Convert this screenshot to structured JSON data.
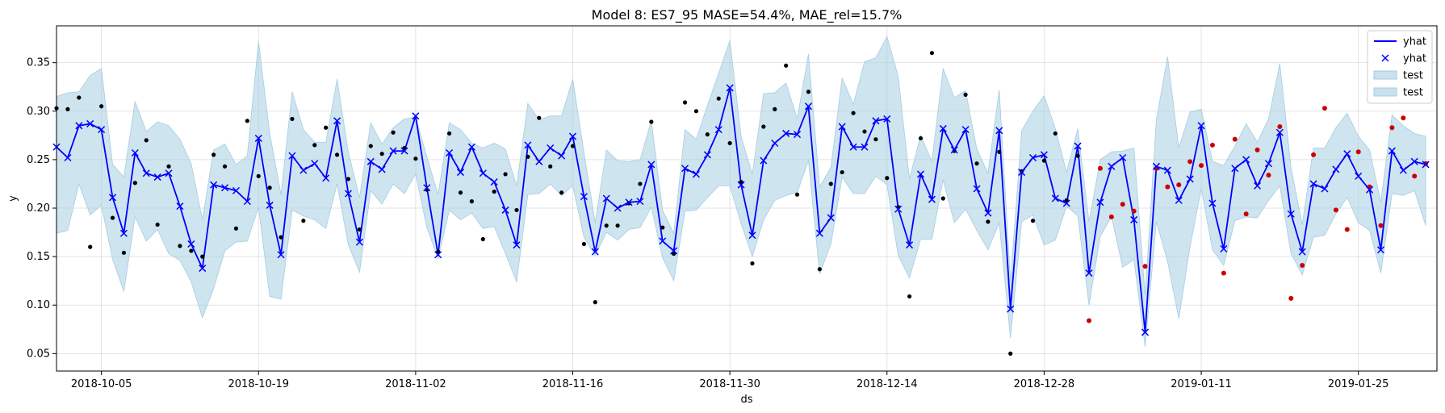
{
  "chart_data": {
    "type": "line",
    "title": "Model 8: ES7_95 MASE=54.4%, MAE_rel=15.7%",
    "xlabel": "ds",
    "ylabel": "y",
    "x_start": "2018-10-01",
    "x_range": [
      "2018-10-01",
      "2019-02-01"
    ],
    "ylim": [
      0.032,
      0.388
    ],
    "x_ticks": [
      "2018-10-05",
      "2018-10-19",
      "2018-11-02",
      "2018-11-16",
      "2018-11-30",
      "2018-12-14",
      "2018-12-28",
      "2019-01-11",
      "2019-01-25"
    ],
    "y_ticks": [
      0.05,
      0.1,
      0.15,
      0.2,
      0.25,
      0.3,
      0.35
    ],
    "y_tick_labels": [
      "0.05",
      "0.10",
      "0.15",
      "0.20",
      "0.25",
      "0.30",
      "0.35"
    ],
    "grid": true,
    "legend_placement": "top-right",
    "legend": [
      {
        "label": "yhat",
        "kind": "line",
        "color": "#0000ff"
      },
      {
        "label": "yhat",
        "kind": "x-marker",
        "color": "#0000ff"
      },
      {
        "label": "test",
        "kind": "band",
        "color": "#a6cde2"
      },
      {
        "label": "test",
        "kind": "band",
        "color": "#a6cde2"
      }
    ],
    "colors": {
      "yhat": "#0000ff",
      "band": "#a6cde2",
      "actual": "#000000",
      "test_actual": "#cc0000"
    },
    "yhat": [
      0.263,
      0.252,
      0.285,
      0.287,
      0.281,
      0.211,
      0.174,
      0.257,
      0.236,
      0.232,
      0.236,
      0.202,
      0.163,
      0.138,
      0.224,
      0.221,
      0.218,
      0.207,
      0.272,
      0.203,
      0.152,
      0.254,
      0.239,
      0.246,
      0.231,
      0.29,
      0.215,
      0.165,
      0.248,
      0.24,
      0.259,
      0.259,
      0.295,
      0.221,
      0.152,
      0.257,
      0.237,
      0.263,
      0.236,
      0.227,
      0.198,
      0.162,
      0.265,
      0.248,
      0.262,
      0.254,
      0.274,
      0.212,
      0.155,
      0.21,
      0.2,
      0.206,
      0.207,
      0.245,
      0.166,
      0.156,
      0.241,
      0.235,
      0.255,
      0.281,
      0.324,
      0.224,
      0.172,
      0.249,
      0.267,
      0.277,
      0.276,
      0.305,
      0.174,
      0.19,
      0.284,
      0.263,
      0.263,
      0.29,
      0.292,
      0.199,
      0.162,
      0.235,
      0.209,
      0.282,
      0.26,
      0.281,
      0.22,
      0.195,
      0.28,
      0.096,
      0.237,
      0.252,
      0.255,
      0.21,
      0.205,
      0.264,
      0.133,
      0.206,
      0.243,
      0.252,
      0.188,
      0.072,
      0.243,
      0.239,
      0.208,
      0.23,
      0.285,
      0.205,
      0.158,
      0.241,
      0.25,
      0.223,
      0.246,
      0.278,
      0.194,
      0.155,
      0.225,
      0.22,
      0.24,
      0.256,
      0.233,
      0.219,
      0.157,
      0.259,
      0.239,
      0.248,
      0.245
    ],
    "lower": [
      0.174,
      0.177,
      0.225,
      0.193,
      0.203,
      0.147,
      0.114,
      0.191,
      0.166,
      0.178,
      0.153,
      0.146,
      0.124,
      0.087,
      0.117,
      0.156,
      0.165,
      0.166,
      0.201,
      0.109,
      0.106,
      0.198,
      0.192,
      0.188,
      0.179,
      0.225,
      0.162,
      0.134,
      0.218,
      0.204,
      0.225,
      0.215,
      0.235,
      0.18,
      0.148,
      0.198,
      0.188,
      0.195,
      0.179,
      0.181,
      0.153,
      0.124,
      0.214,
      0.215,
      0.225,
      0.213,
      0.223,
      0.17,
      0.151,
      0.175,
      0.167,
      0.178,
      0.18,
      0.201,
      0.149,
      0.125,
      0.197,
      0.198,
      0.211,
      0.223,
      0.223,
      0.184,
      0.15,
      0.188,
      0.208,
      0.213,
      0.216,
      0.249,
      0.132,
      0.163,
      0.232,
      0.215,
      0.215,
      0.233,
      0.224,
      0.151,
      0.128,
      0.168,
      0.168,
      0.229,
      0.185,
      0.199,
      0.177,
      0.157,
      0.185,
      0.066,
      0.186,
      0.193,
      0.162,
      0.167,
      0.202,
      0.192,
      0.1,
      0.171,
      0.191,
      0.139,
      0.147,
      0.057,
      0.186,
      0.145,
      0.086,
      0.16,
      0.22,
      0.157,
      0.141,
      0.187,
      0.191,
      0.19,
      0.208,
      0.223,
      0.153,
      0.131,
      0.17,
      0.172,
      0.194,
      0.211,
      0.185,
      0.177,
      0.133,
      0.215,
      0.213,
      0.218,
      0.182
    ],
    "upper": [
      0.315,
      0.319,
      0.32,
      0.337,
      0.344,
      0.245,
      0.232,
      0.31,
      0.279,
      0.289,
      0.285,
      0.271,
      0.246,
      0.188,
      0.26,
      0.266,
      0.245,
      0.254,
      0.372,
      0.277,
      0.214,
      0.32,
      0.281,
      0.268,
      0.268,
      0.333,
      0.258,
      0.211,
      0.288,
      0.266,
      0.283,
      0.292,
      0.294,
      0.253,
      0.214,
      0.288,
      0.281,
      0.267,
      0.262,
      0.267,
      0.261,
      0.223,
      0.308,
      0.291,
      0.295,
      0.295,
      0.333,
      0.257,
      0.185,
      0.26,
      0.249,
      0.248,
      0.25,
      0.29,
      0.198,
      0.174,
      0.281,
      0.271,
      0.306,
      0.339,
      0.373,
      0.274,
      0.235,
      0.318,
      0.319,
      0.329,
      0.292,
      0.359,
      0.222,
      0.242,
      0.334,
      0.307,
      0.351,
      0.355,
      0.377,
      0.336,
      0.23,
      0.275,
      0.248,
      0.344,
      0.314,
      0.321,
      0.261,
      0.236,
      0.322,
      0.124,
      0.28,
      0.3,
      0.316,
      0.282,
      0.237,
      0.282,
      0.186,
      0.25,
      0.258,
      0.259,
      0.262,
      0.11,
      0.291,
      0.356,
      0.262,
      0.299,
      0.302,
      0.248,
      0.244,
      0.264,
      0.287,
      0.268,
      0.292,
      0.349,
      0.242,
      0.183,
      0.262,
      0.262,
      0.283,
      0.298,
      0.274,
      0.26,
      0.206,
      0.296,
      0.285,
      0.277,
      0.274
    ],
    "actual": [
      0.303,
      0.302,
      0.314,
      0.16,
      0.305,
      0.19,
      0.154,
      0.226,
      0.27,
      0.183,
      0.243,
      0.161,
      0.156,
      0.15,
      0.255,
      0.243,
      0.179,
      0.29,
      0.233,
      0.221,
      0.17,
      0.292,
      0.187,
      0.265,
      0.283,
      0.255,
      0.23,
      0.178,
      0.264,
      0.256,
      0.278,
      0.262,
      0.251,
      0.219,
      0.155,
      0.277,
      0.216,
      0.207,
      0.168,
      0.217,
      0.235,
      0.198,
      0.253,
      0.293,
      0.243,
      0.216,
      0.264,
      0.163,
      0.103,
      0.182,
      0.182,
      0.205,
      0.225,
      0.289,
      0.18,
      0.153,
      0.309,
      0.3,
      0.276,
      0.313,
      0.267,
      0.227,
      0.143,
      0.284,
      0.302,
      0.347,
      0.214,
      0.32,
      0.137,
      0.225,
      0.237,
      0.298,
      0.279,
      0.271,
      0.231,
      0.201,
      0.109,
      0.272,
      0.36,
      0.21,
      0.259,
      0.317,
      0.246,
      0.186,
      0.258,
      0.05,
      0.238,
      0.187,
      0.249,
      0.277,
      0.208,
      0.254,
      null,
      null,
      null,
      null,
      null,
      null,
      null,
      null,
      null,
      null,
      null,
      null,
      null,
      null,
      null,
      null,
      null,
      null,
      null,
      null,
      null,
      null,
      null,
      null,
      null,
      null,
      null,
      null,
      null
    ],
    "test_actual": [
      null,
      null,
      null,
      null,
      null,
      null,
      null,
      null,
      null,
      null,
      null,
      null,
      null,
      null,
      null,
      null,
      null,
      null,
      null,
      null,
      null,
      null,
      null,
      null,
      null,
      null,
      null,
      null,
      null,
      null,
      null,
      null,
      null,
      null,
      null,
      null,
      null,
      null,
      null,
      null,
      null,
      null,
      null,
      null,
      null,
      null,
      null,
      null,
      null,
      null,
      null,
      null,
      null,
      null,
      null,
      null,
      null,
      null,
      null,
      null,
      null,
      null,
      null,
      null,
      null,
      null,
      null,
      null,
      null,
      null,
      null,
      null,
      null,
      null,
      null,
      null,
      null,
      null,
      null,
      null,
      null,
      null,
      null,
      null,
      null,
      null,
      null,
      null,
      null,
      null,
      null,
      null,
      0.084,
      0.241,
      0.191,
      0.204,
      0.197,
      0.14,
      0.241,
      0.222,
      0.224,
      0.248,
      0.244,
      0.265,
      0.133,
      0.271,
      0.194,
      0.26,
      0.234,
      0.284,
      0.107,
      0.141,
      0.255,
      0.303,
      0.198,
      0.178,
      0.258,
      0.222,
      0.182,
      0.283,
      0.293,
      0.233,
      0.246
    ]
  }
}
